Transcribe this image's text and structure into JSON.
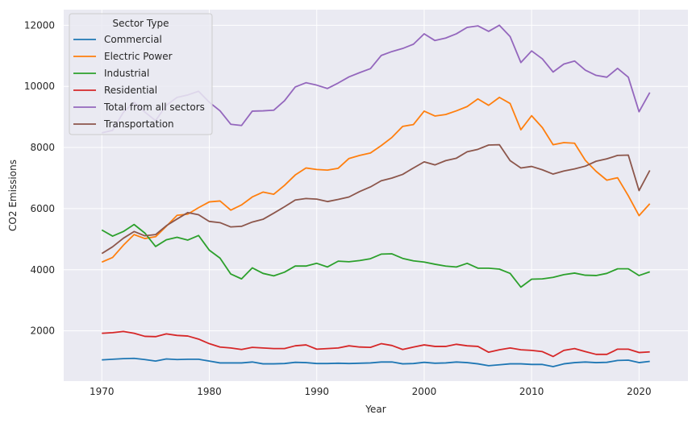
{
  "chart_data": {
    "type": "line",
    "xlabel": "Year",
    "ylabel": "CO2 Emissions",
    "xlim": [
      1966.45,
      2024.55
    ],
    "ylim": [
      355,
      12510
    ],
    "xticks": [
      1970,
      1980,
      1990,
      2000,
      2010,
      2020
    ],
    "yticks": [
      2000,
      4000,
      6000,
      8000,
      10000,
      12000
    ],
    "grid": true,
    "legend": {
      "title": "Sector Type",
      "placement": "top-left"
    },
    "x": [
      1970,
      1971,
      1972,
      1973,
      1974,
      1975,
      1976,
      1977,
      1978,
      1979,
      1980,
      1981,
      1982,
      1983,
      1984,
      1985,
      1986,
      1987,
      1988,
      1989,
      1990,
      1991,
      1992,
      1993,
      1994,
      1995,
      1996,
      1997,
      1998,
      1999,
      2000,
      2001,
      2002,
      2003,
      2004,
      2005,
      2006,
      2007,
      2008,
      2009,
      2010,
      2011,
      2012,
      2013,
      2014,
      2015,
      2016,
      2017,
      2018,
      2019,
      2020,
      2021
    ],
    "series": [
      {
        "name": "Commercial",
        "color": "#1f77b4",
        "values": [
          1050,
          1070,
          1090,
          1100,
          1060,
          1010,
          1080,
          1060,
          1070,
          1070,
          1010,
          950,
          950,
          950,
          980,
          920,
          920,
          930,
          970,
          960,
          930,
          930,
          940,
          930,
          940,
          950,
          980,
          980,
          920,
          930,
          970,
          940,
          950,
          980,
          960,
          920,
          860,
          890,
          920,
          920,
          900,
          900,
          830,
          920,
          960,
          980,
          960,
          970,
          1030,
          1040,
          960,
          1000
        ]
      },
      {
        "name": "Electric Power",
        "color": "#ff7f0e",
        "values": [
          4250,
          4400,
          4800,
          5150,
          5020,
          5080,
          5420,
          5780,
          5820,
          6030,
          6220,
          6250,
          5950,
          6120,
          6380,
          6540,
          6470,
          6760,
          7100,
          7330,
          7280,
          7260,
          7320,
          7640,
          7740,
          7820,
          8060,
          8330,
          8690,
          8750,
          9190,
          9030,
          9080,
          9200,
          9340,
          9590,
          9380,
          9640,
          9440,
          8580,
          9040,
          8650,
          8090,
          8160,
          8140,
          7580,
          7220,
          6930,
          7010,
          6420,
          5770,
          6160
        ]
      },
      {
        "name": "Industrial",
        "color": "#2ca02c",
        "values": [
          5300,
          5100,
          5250,
          5480,
          5200,
          4760,
          4980,
          5060,
          4970,
          5120,
          4640,
          4380,
          3860,
          3700,
          4060,
          3880,
          3800,
          3920,
          4120,
          4120,
          4210,
          4090,
          4280,
          4260,
          4300,
          4360,
          4510,
          4520,
          4370,
          4290,
          4250,
          4180,
          4120,
          4090,
          4210,
          4050,
          4050,
          4020,
          3880,
          3430,
          3690,
          3700,
          3750,
          3840,
          3890,
          3820,
          3810,
          3880,
          4030,
          4030,
          3810,
          3930
        ]
      },
      {
        "name": "Residential",
        "color": "#d62728",
        "values": [
          1920,
          1940,
          1980,
          1920,
          1820,
          1810,
          1900,
          1850,
          1830,
          1730,
          1580,
          1470,
          1440,
          1390,
          1460,
          1440,
          1420,
          1420,
          1510,
          1540,
          1400,
          1420,
          1440,
          1510,
          1470,
          1460,
          1580,
          1520,
          1390,
          1470,
          1540,
          1490,
          1490,
          1560,
          1510,
          1490,
          1300,
          1380,
          1440,
          1380,
          1360,
          1320,
          1160,
          1360,
          1420,
          1320,
          1230,
          1230,
          1400,
          1400,
          1290,
          1310
        ]
      },
      {
        "name": "Total from all sectors",
        "color": "#9467bd",
        "values": [
          8480,
          8560,
          9150,
          9480,
          9160,
          8880,
          9380,
          9640,
          9720,
          9840,
          9480,
          9200,
          8760,
          8720,
          9190,
          9200,
          9220,
          9530,
          9980,
          10120,
          10040,
          9930,
          10110,
          10310,
          10450,
          10580,
          11010,
          11140,
          11240,
          11380,
          11720,
          11500,
          11580,
          11720,
          11930,
          11980,
          11800,
          12000,
          11630,
          10780,
          11160,
          10900,
          10470,
          10730,
          10830,
          10530,
          10360,
          10300,
          10590,
          10300,
          9170,
          9800
        ]
      },
      {
        "name": "Transportation",
        "color": "#8c564b",
        "values": [
          4530,
          4750,
          5030,
          5250,
          5110,
          5150,
          5440,
          5660,
          5870,
          5800,
          5580,
          5540,
          5400,
          5420,
          5560,
          5650,
          5850,
          6060,
          6280,
          6330,
          6310,
          6230,
          6300,
          6380,
          6560,
          6710,
          6910,
          7000,
          7120,
          7330,
          7530,
          7430,
          7570,
          7650,
          7860,
          7940,
          8080,
          8090,
          7570,
          7330,
          7380,
          7270,
          7130,
          7230,
          7300,
          7390,
          7550,
          7630,
          7740,
          7750,
          6590,
          7250
        ]
      }
    ]
  }
}
